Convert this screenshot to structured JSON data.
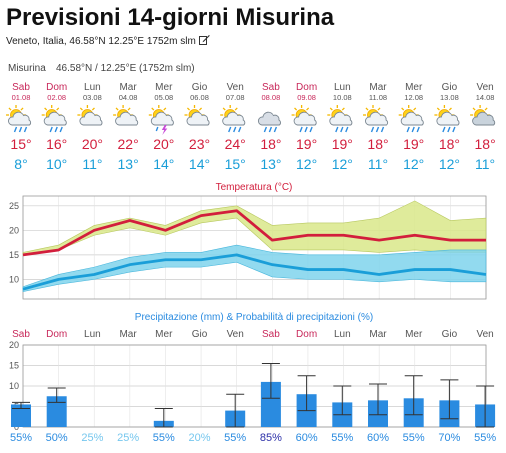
{
  "page": {
    "title": "Previsioni 14-giorni Misurina",
    "subtitle": "Veneto, Italia, 46.58°N 12.25°E 1752m slm",
    "edit_icon": "edit-icon"
  },
  "widget": {
    "location_label": "Misurina",
    "coords_label": "46.58°N / 12.25°E (1752m slm)"
  },
  "colors": {
    "weekend": "#c8285a",
    "weekday": "#555555",
    "max_temp": "#d21e3c",
    "min_temp": "#1a9ed8",
    "temp_title": "#d21e3c",
    "precip_title": "#2a8be0",
    "bar": "#2a8be0",
    "max_band": "#d9e88a",
    "min_band": "#7fd3ec",
    "prob_low": "#2a8be0",
    "prob_lowest": "#76c7ee",
    "prob_high": "#2b2fa8"
  },
  "days": [
    {
      "day": "Sab",
      "date": "01.08",
      "weekend": true,
      "icon": "sun-cloud-rain-icon",
      "max": "15°",
      "min": "8°"
    },
    {
      "day": "Dom",
      "date": "02.08",
      "weekend": true,
      "icon": "sun-cloud-rain-icon",
      "max": "16°",
      "min": "10°"
    },
    {
      "day": "Lun",
      "date": "03.08",
      "weekend": false,
      "icon": "sun-cloud-icon",
      "max": "20°",
      "min": "11°"
    },
    {
      "day": "Mar",
      "date": "04.08",
      "weekend": false,
      "icon": "sun-cloud-icon",
      "max": "22°",
      "min": "13°"
    },
    {
      "day": "Mer",
      "date": "05.08",
      "weekend": false,
      "icon": "sun-cloud-thunder-icon",
      "max": "20°",
      "min": "14°"
    },
    {
      "day": "Gio",
      "date": "06.08",
      "weekend": false,
      "icon": "sun-cloud-icon",
      "max": "23°",
      "min": "14°"
    },
    {
      "day": "Ven",
      "date": "07.08",
      "weekend": false,
      "icon": "sun-cloud-rain-icon",
      "max": "24°",
      "min": "15°"
    },
    {
      "day": "Sab",
      "date": "08.08",
      "weekend": true,
      "icon": "cloud-rain-icon",
      "max": "18°",
      "min": "13°"
    },
    {
      "day": "Dom",
      "date": "09.08",
      "weekend": true,
      "icon": "sun-cloud-rain-icon",
      "max": "19°",
      "min": "12°"
    },
    {
      "day": "Lun",
      "date": "10.08",
      "weekend": false,
      "icon": "sun-cloud-rain-icon",
      "max": "19°",
      "min": "12°"
    },
    {
      "day": "Mar",
      "date": "11.08",
      "weekend": false,
      "icon": "sun-cloud-rain-icon",
      "max": "18°",
      "min": "11°"
    },
    {
      "day": "Mer",
      "date": "12.08",
      "weekend": false,
      "icon": "sun-cloud-rain-icon",
      "max": "19°",
      "min": "12°"
    },
    {
      "day": "Gio",
      "date": "13.08",
      "weekend": false,
      "icon": "sun-cloud-rain-icon",
      "max": "18°",
      "min": "12°"
    },
    {
      "day": "Ven",
      "date": "14.08",
      "weekend": false,
      "icon": "partly-cloudy-icon",
      "max": "18°",
      "min": "11°"
    }
  ],
  "chart_data": [
    {
      "type": "line",
      "title": "Temperatura (°C)",
      "ylim": [
        6,
        27
      ],
      "yticks": [
        10,
        15,
        20,
        25
      ],
      "grid": true,
      "series": [
        {
          "values": [
            15,
            16,
            20,
            22,
            20,
            23,
            24,
            18,
            19,
            19,
            18,
            19,
            18,
            18
          ],
          "band_low": [
            15,
            16,
            19,
            20.5,
            19,
            21.5,
            22.5,
            16,
            16,
            16,
            15.5,
            16,
            15.5,
            15.5
          ],
          "band_high": [
            15.5,
            17,
            21,
            22.5,
            21,
            24,
            25,
            21,
            21.5,
            21.5,
            22.5,
            26,
            22,
            22.5
          ]
        },
        {
          "values": [
            8,
            10,
            11,
            13,
            14,
            14,
            15,
            13,
            12,
            12,
            11,
            12,
            12,
            11
          ],
          "band_low": [
            7.5,
            9,
            10,
            11.5,
            12.5,
            12.5,
            13.5,
            10.5,
            10,
            10,
            9.5,
            10,
            9.5,
            9.5
          ],
          "band_high": [
            8.5,
            11,
            12.5,
            14.5,
            15.5,
            15.5,
            17,
            15.5,
            15,
            15,
            15,
            15.5,
            16,
            16
          ]
        }
      ]
    },
    {
      "type": "bar",
      "title": "Precipitazione (mm) & Probabilità di precipitazioni (%)",
      "categories": [
        "Sab",
        "Dom",
        "Lun",
        "Mar",
        "Mer",
        "Gio",
        "Ven",
        "Sab",
        "Dom",
        "Lun",
        "Mar",
        "Mer",
        "Gio",
        "Ven"
      ],
      "ylim": [
        0,
        20
      ],
      "yticks": [
        0,
        5,
        10,
        15,
        20
      ],
      "grid": true,
      "values": [
        5.5,
        7.5,
        0,
        0,
        1.5,
        0,
        4,
        11,
        8,
        6,
        6.5,
        7,
        6.5,
        5.5
      ],
      "error_low": [
        4.5,
        6,
        0,
        0,
        0,
        0,
        0,
        7,
        4,
        3,
        3,
        3,
        2,
        0
      ],
      "error_high": [
        6,
        9.5,
        0,
        0,
        4.5,
        0,
        8,
        15.5,
        12.5,
        10,
        10.5,
        12.5,
        11.5,
        10
      ],
      "probabilities": [
        "55%",
        "50%",
        "25%",
        "25%",
        "55%",
        "20%",
        "55%",
        "85%",
        "60%",
        "55%",
        "60%",
        "55%",
        "70%",
        "55%"
      ]
    }
  ]
}
